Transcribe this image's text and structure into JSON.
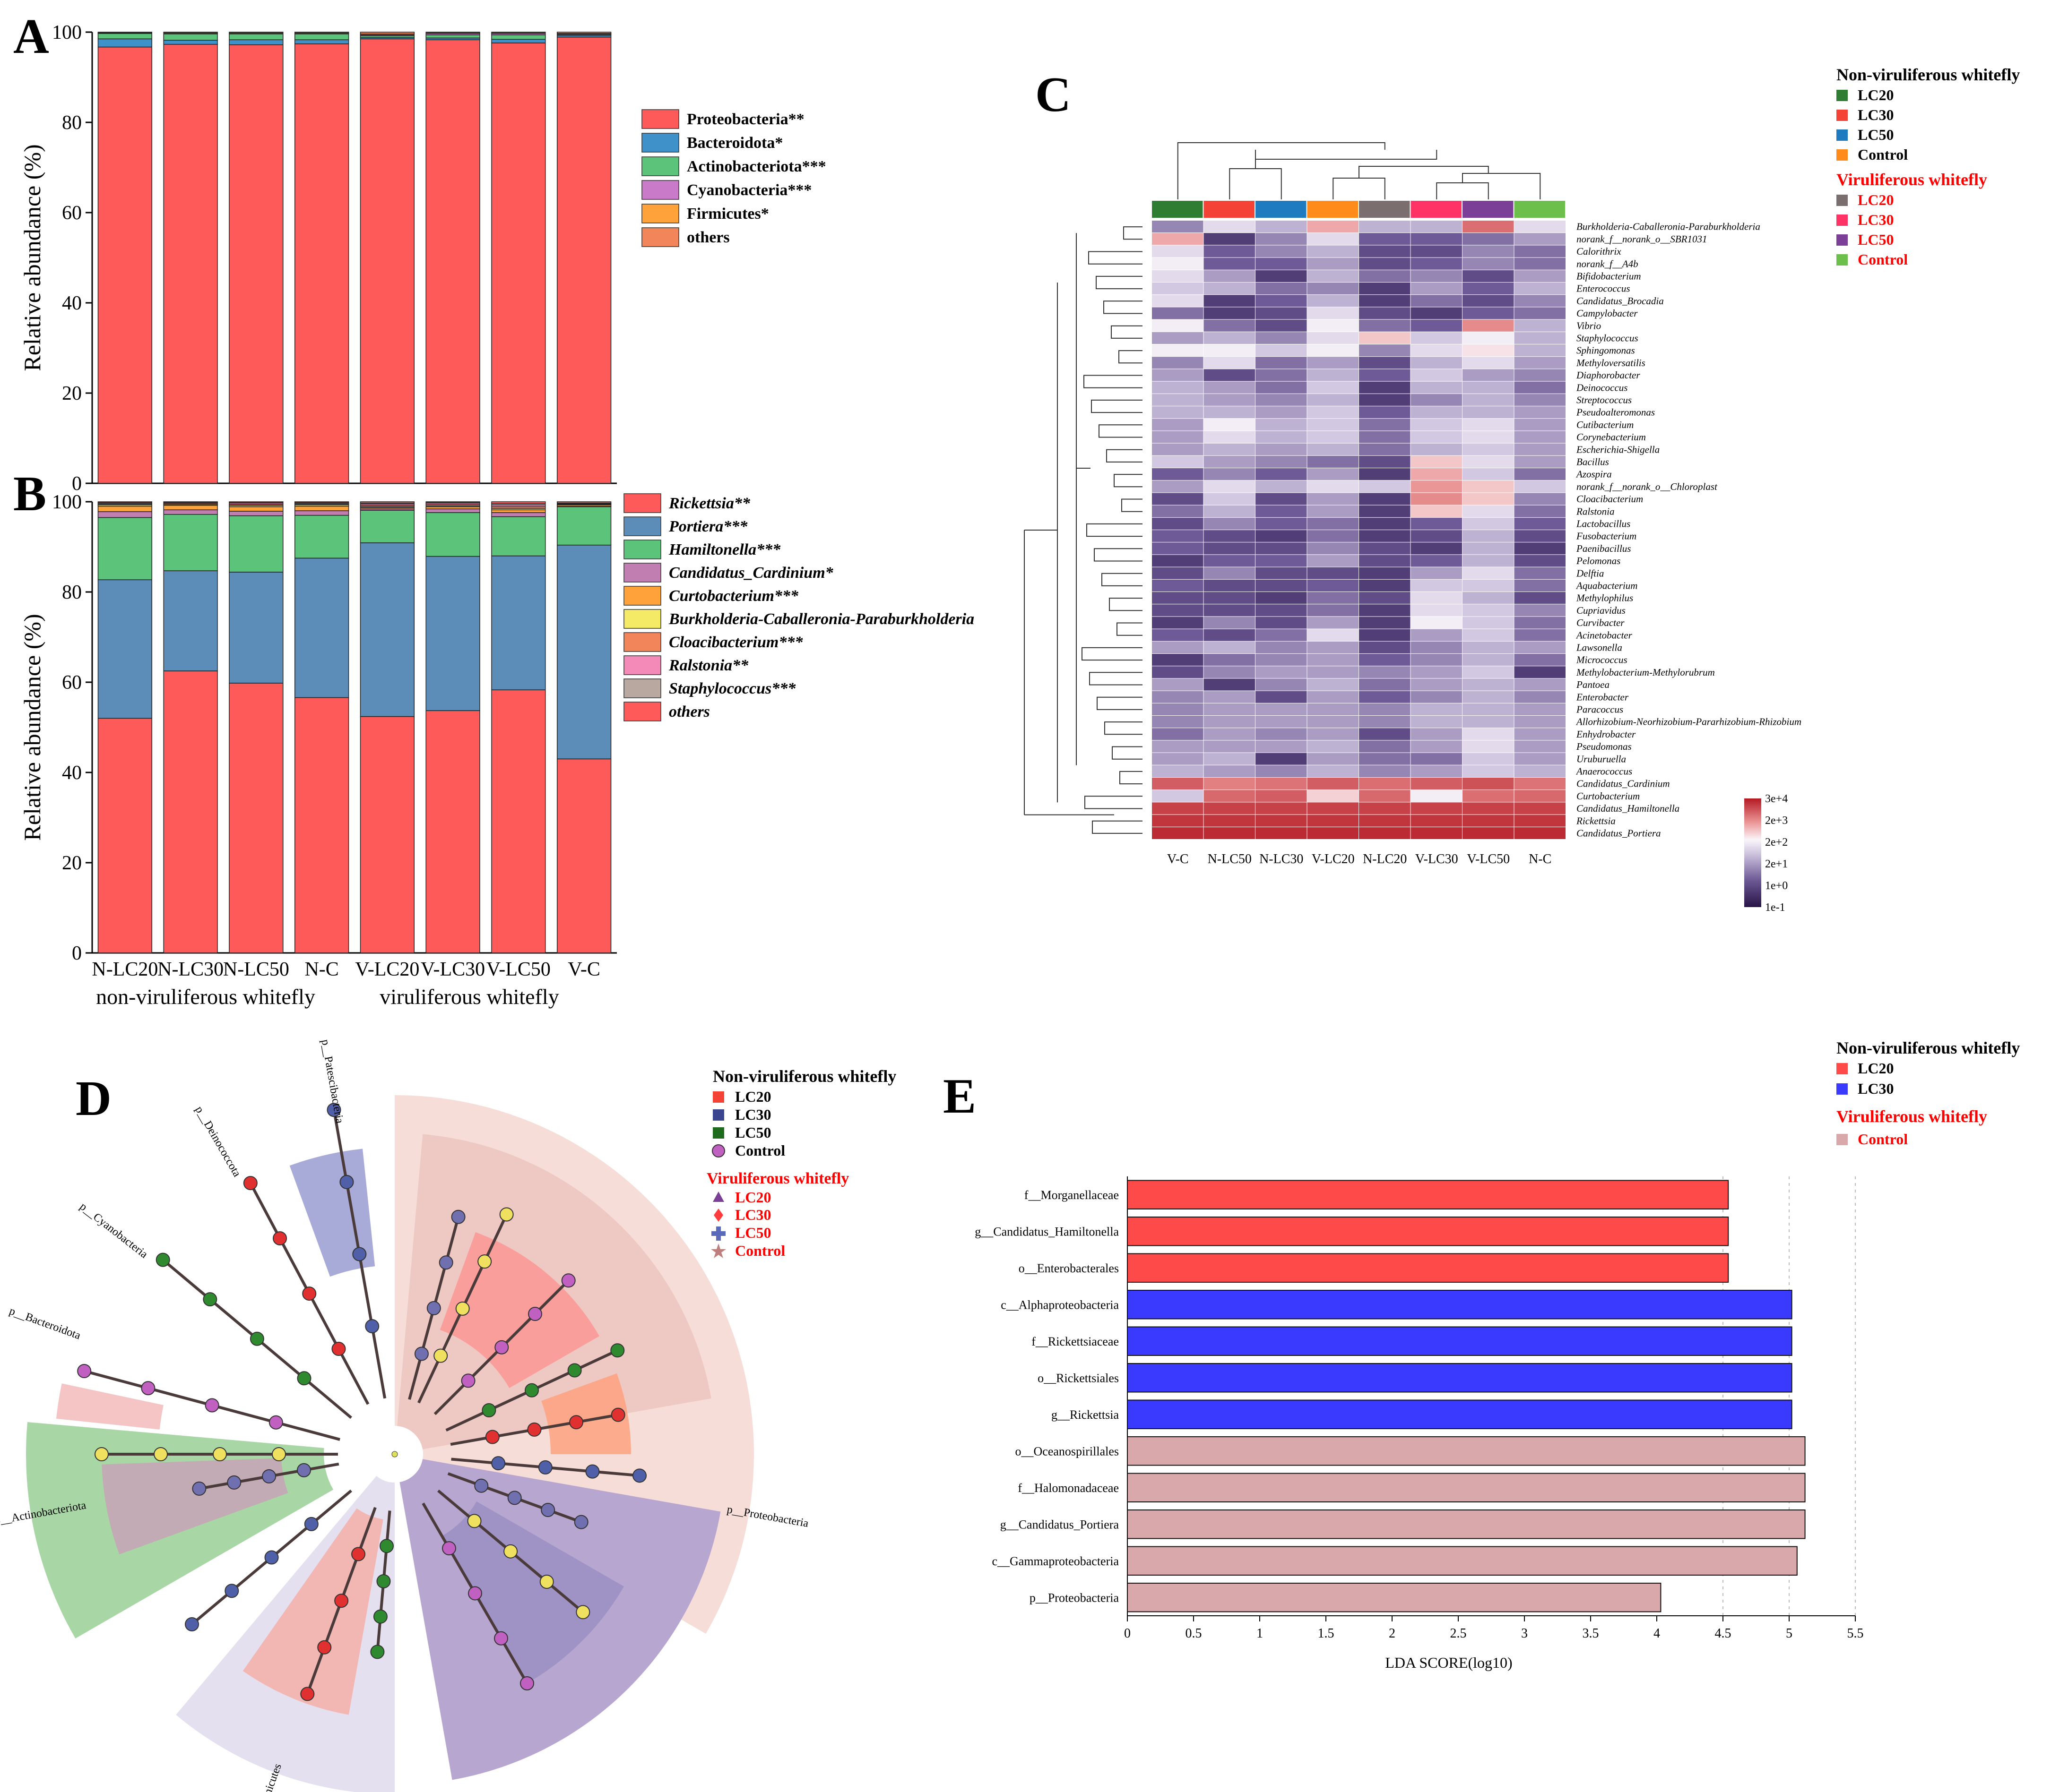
{
  "panel_letters": {
    "a": "A",
    "b": "B",
    "c": "C",
    "d": "D",
    "e": "E"
  },
  "colors": {
    "red": "#ff5a5a",
    "blue": "#5b8db8",
    "teal": "#3f92c9",
    "green": "#5cc47a",
    "purple": "#c97bc9",
    "orange": "#ffa23a",
    "salmon": "#f2865a",
    "yellow": "#f4ea66",
    "pink": "#f48ab8",
    "taupe": "#b9a8a0",
    "mauve": "#c07fb0",
    "lc20_nv": "#2e7d32",
    "lc30_nv": "#f44336",
    "lc50_nv": "#1e7bbf",
    "control_nv": "#ff8c1a",
    "lc20_v": "#7a6e6e",
    "lc30_v": "#ff3366",
    "lc50_v": "#7b3f98",
    "control_v": "#6cbf4a",
    "lda_red": "#ff4a4a",
    "lda_blue": "#3a3aff",
    "lda_pink": "#d8a8aa"
  },
  "chart_data": [
    {
      "id": "A",
      "type": "bar",
      "stacked": true,
      "title": "",
      "ylabel": "Relative abundance (%)",
      "xlabel": "",
      "ylim": [
        0,
        100
      ],
      "yticks": [
        0,
        20,
        40,
        60,
        80,
        100
      ],
      "categories": [
        "N-LC20",
        "N-LC30",
        "N-LC50",
        "N-C",
        "V-LC20",
        "V-LC30",
        "V-LC50",
        "V-C"
      ],
      "series": [
        {
          "name": "Proteobacteria**",
          "color": "#ff5a5a",
          "values": [
            96.7,
            97.3,
            97.2,
            97.4,
            98.5,
            98.3,
            97.6,
            98.9
          ]
        },
        {
          "name": "Bacteroidota*",
          "color": "#3f92c9",
          "values": [
            1.8,
            0.9,
            1.1,
            0.9,
            0.3,
            0.4,
            0.8,
            0.4
          ]
        },
        {
          "name": "Actinobacteriota***",
          "color": "#5cc47a",
          "values": [
            1.2,
            1.4,
            1.3,
            1.3,
            0.4,
            0.7,
            1.0,
            0.2
          ]
        },
        {
          "name": "Cyanobacteria***",
          "color": "#c97bc9",
          "values": [
            0.1,
            0.1,
            0.1,
            0.1,
            0.2,
            0.3,
            0.3,
            0.1
          ]
        },
        {
          "name": "Firmicutes*",
          "color": "#ffa23a",
          "values": [
            0.1,
            0.2,
            0.2,
            0.2,
            0.2,
            0.2,
            0.2,
            0.1
          ]
        },
        {
          "name": "others",
          "color": "#f2865a",
          "values": [
            0.1,
            0.1,
            0.1,
            0.1,
            0.4,
            0.1,
            0.1,
            0.3
          ]
        }
      ]
    },
    {
      "id": "B",
      "type": "bar",
      "stacked": true,
      "title": "",
      "ylabel": "Relative abundance (%)",
      "xlabel": "",
      "ylim": [
        0,
        100
      ],
      "yticks": [
        0,
        20,
        40,
        60,
        80,
        100
      ],
      "categories": [
        "N-LC20",
        "N-LC30",
        "N-LC50",
        "N-C",
        "V-LC20",
        "V-LC30",
        "V-LC50",
        "V-C"
      ],
      "group_labels": [
        "non-viruliferous whitefly",
        "viruliferous whitefly"
      ],
      "series": [
        {
          "name": "Rickettsia**",
          "color": "#ff5a5a",
          "values": [
            52.0,
            62.5,
            59.8,
            56.6,
            52.4,
            53.7,
            58.3,
            43.0
          ]
        },
        {
          "name": "Portiera***",
          "color": "#5b8db8",
          "values": [
            30.7,
            22.2,
            24.6,
            30.9,
            38.5,
            34.2,
            29.7,
            47.4
          ]
        },
        {
          "name": "Hamiltonella***",
          "color": "#5cc47a",
          "values": [
            13.8,
            12.5,
            12.5,
            9.5,
            7.2,
            9.7,
            8.7,
            8.5
          ]
        },
        {
          "name": "Candidatus_Cardinium*",
          "color": "#c07fb0",
          "values": [
            1.3,
            1.0,
            1.0,
            1.0,
            0.3,
            0.8,
            0.9,
            0.1
          ]
        },
        {
          "name": "Curtobacterium***",
          "color": "#ffa23a",
          "values": [
            1.2,
            1.0,
            1.0,
            1.0,
            0.3,
            0.5,
            0.6,
            0.3
          ]
        },
        {
          "name": "Burkholderia-Caballeronia-Paraburkholderia",
          "color": "#f4ea66",
          "values": [
            0.3,
            0.2,
            0.3,
            0.3,
            0.2,
            0.2,
            0.3,
            0.1
          ]
        },
        {
          "name": "Cloacibacterium***",
          "color": "#f2865a",
          "values": [
            0.2,
            0.2,
            0.2,
            0.2,
            0.3,
            0.3,
            0.4,
            0.1
          ]
        },
        {
          "name": "Ralstonia**",
          "color": "#f48ab8",
          "values": [
            0.2,
            0.2,
            0.3,
            0.2,
            0.3,
            0.3,
            0.4,
            0.1
          ]
        },
        {
          "name": "Staphylococcus***",
          "color": "#b9a8a0",
          "values": [
            0.1,
            0.1,
            0.1,
            0.1,
            0.2,
            0.2,
            0.3,
            0.1
          ]
        },
        {
          "name": "others",
          "color": "#ff5a5a",
          "values": [
            0.2,
            0.1,
            0.2,
            0.2,
            0.3,
            0.1,
            0.4,
            0.3
          ]
        }
      ]
    },
    {
      "id": "C",
      "type": "heatmap",
      "columns": [
        "V-C",
        "N-LC50",
        "N-LC30",
        "V-LC20",
        "N-LC20",
        "V-LC30",
        "V-LC50",
        "N-C"
      ],
      "rows": [
        "Burkholderia-Caballeronia-Paraburkholderia",
        "norank_f__norank_o__SBR1031",
        "Calorithrix",
        "norank_f__A4b",
        "Bifidobacterium",
        "Enterococcus",
        "Candidatus_Brocadia",
        "Campylobacter",
        "Vibrio",
        "Staphylococcus",
        "Sphingomonas",
        "Methyloversatilis",
        "Diaphorobacter",
        "Deinococcus",
        "Streptococcus",
        "Pseudoalteromonas",
        "Cutibacterium",
        "Corynebacterium",
        "Escherichia-Shigella",
        "Bacillus",
        "Azospira",
        "norank_f__norank_o__Chloroplast",
        "Cloacibacterium",
        "Ralstonia",
        "Lactobacillus",
        "Fusobacterium",
        "Paenibacillus",
        "Pelomonas",
        "Delftia",
        "Aquabacterium",
        "Methylophilus",
        "Cupriavidus",
        "Curvibacter",
        "Acinetobacter",
        "Lawsonella",
        "Micrococcus",
        "Methylobacterium-Methylorubrum",
        "Pantoea",
        "Enterobacter",
        "Paracoccus",
        "Allorhizobium-Neorhizobium-Pararhizobium-Rhizobium",
        "Enhydrobacter",
        "Pseudomonas",
        "Uruburuella",
        "Anaerococcus",
        "Candidatus_Cardinium",
        "Curtobacterium",
        "Candidatus_Hamiltonella",
        "Rickettsia",
        "Candidatus_Portiera"
      ],
      "group_colors": [
        "#2e7d32",
        "#f44336",
        "#1e7bbf",
        "#ff8c1a",
        "#7a6e6e",
        "#ff3366",
        "#7b3f98",
        "#6cbf4a"
      ],
      "colorbar_ticks": [
        "3e+4",
        "2e+3",
        "2e+2",
        "2e+1",
        "1e+0",
        "1e-1"
      ],
      "values": [
        [
          0.35,
          0.55,
          0.45,
          0.75,
          0.45,
          0.45,
          0.85,
          0.55
        ],
        [
          0.75,
          0.15,
          0.35,
          0.55,
          0.25,
          0.25,
          0.3,
          0.4
        ],
        [
          0.55,
          0.25,
          0.35,
          0.45,
          0.2,
          0.2,
          0.35,
          0.3
        ],
        [
          0.6,
          0.25,
          0.25,
          0.4,
          0.2,
          0.25,
          0.35,
          0.3
        ],
        [
          0.55,
          0.4,
          0.15,
          0.45,
          0.3,
          0.35,
          0.2,
          0.4
        ],
        [
          0.5,
          0.45,
          0.3,
          0.35,
          0.15,
          0.4,
          0.25,
          0.45
        ],
        [
          0.55,
          0.15,
          0.25,
          0.45,
          0.15,
          0.3,
          0.2,
          0.35
        ],
        [
          0.3,
          0.15,
          0.2,
          0.55,
          0.2,
          0.15,
          0.25,
          0.3
        ],
        [
          0.6,
          0.3,
          0.2,
          0.6,
          0.3,
          0.25,
          0.8,
          0.45
        ],
        [
          0.4,
          0.45,
          0.35,
          0.55,
          0.7,
          0.5,
          0.6,
          0.45
        ],
        [
          0.6,
          0.6,
          0.5,
          0.6,
          0.35,
          0.55,
          0.65,
          0.45
        ],
        [
          0.35,
          0.55,
          0.3,
          0.4,
          0.2,
          0.45,
          0.55,
          0.4
        ],
        [
          0.4,
          0.2,
          0.3,
          0.45,
          0.25,
          0.5,
          0.4,
          0.35
        ],
        [
          0.45,
          0.4,
          0.3,
          0.5,
          0.15,
          0.45,
          0.45,
          0.3
        ],
        [
          0.45,
          0.4,
          0.35,
          0.45,
          0.15,
          0.35,
          0.45,
          0.35
        ],
        [
          0.45,
          0.45,
          0.4,
          0.5,
          0.25,
          0.45,
          0.45,
          0.4
        ],
        [
          0.4,
          0.6,
          0.45,
          0.5,
          0.3,
          0.5,
          0.55,
          0.4
        ],
        [
          0.4,
          0.55,
          0.45,
          0.5,
          0.3,
          0.5,
          0.55,
          0.4
        ],
        [
          0.4,
          0.45,
          0.4,
          0.45,
          0.3,
          0.45,
          0.5,
          0.4
        ],
        [
          0.5,
          0.4,
          0.35,
          0.3,
          0.2,
          0.7,
          0.55,
          0.4
        ],
        [
          0.25,
          0.35,
          0.25,
          0.4,
          0.15,
          0.75,
          0.5,
          0.3
        ],
        [
          0.4,
          0.55,
          0.45,
          0.55,
          0.5,
          0.78,
          0.7,
          0.5
        ],
        [
          0.2,
          0.5,
          0.2,
          0.4,
          0.15,
          0.8,
          0.7,
          0.35
        ],
        [
          0.3,
          0.45,
          0.25,
          0.4,
          0.15,
          0.7,
          0.55,
          0.3
        ],
        [
          0.2,
          0.35,
          0.25,
          0.3,
          0.15,
          0.25,
          0.5,
          0.25
        ],
        [
          0.25,
          0.2,
          0.15,
          0.3,
          0.15,
          0.2,
          0.45,
          0.2
        ],
        [
          0.25,
          0.2,
          0.2,
          0.35,
          0.2,
          0.15,
          0.45,
          0.15
        ],
        [
          0.15,
          0.25,
          0.25,
          0.4,
          0.2,
          0.25,
          0.45,
          0.2
        ],
        [
          0.2,
          0.35,
          0.2,
          0.2,
          0.15,
          0.4,
          0.55,
          0.3
        ],
        [
          0.25,
          0.2,
          0.2,
          0.25,
          0.15,
          0.5,
          0.5,
          0.3
        ],
        [
          0.2,
          0.2,
          0.15,
          0.3,
          0.2,
          0.55,
          0.45,
          0.2
        ],
        [
          0.2,
          0.2,
          0.2,
          0.3,
          0.15,
          0.55,
          0.5,
          0.35
        ],
        [
          0.15,
          0.35,
          0.2,
          0.4,
          0.15,
          0.6,
          0.5,
          0.3
        ],
        [
          0.25,
          0.2,
          0.3,
          0.55,
          0.15,
          0.4,
          0.5,
          0.3
        ],
        [
          0.4,
          0.45,
          0.35,
          0.4,
          0.2,
          0.35,
          0.45,
          0.4
        ],
        [
          0.15,
          0.3,
          0.35,
          0.4,
          0.25,
          0.35,
          0.45,
          0.3
        ],
        [
          0.2,
          0.35,
          0.4,
          0.4,
          0.35,
          0.4,
          0.5,
          0.15
        ],
        [
          0.4,
          0.15,
          0.35,
          0.45,
          0.3,
          0.4,
          0.45,
          0.4
        ],
        [
          0.35,
          0.4,
          0.2,
          0.4,
          0.25,
          0.35,
          0.45,
          0.35
        ],
        [
          0.35,
          0.4,
          0.4,
          0.4,
          0.35,
          0.45,
          0.45,
          0.4
        ],
        [
          0.35,
          0.4,
          0.4,
          0.4,
          0.35,
          0.45,
          0.45,
          0.4
        ],
        [
          0.3,
          0.4,
          0.35,
          0.4,
          0.2,
          0.4,
          0.55,
          0.4
        ],
        [
          0.4,
          0.4,
          0.4,
          0.45,
          0.3,
          0.4,
          0.55,
          0.4
        ],
        [
          0.4,
          0.45,
          0.15,
          0.4,
          0.3,
          0.3,
          0.5,
          0.4
        ],
        [
          0.45,
          0.4,
          0.35,
          0.45,
          0.35,
          0.4,
          0.5,
          0.45
        ],
        [
          0.88,
          0.82,
          0.84,
          0.88,
          0.85,
          0.88,
          0.9,
          0.84
        ],
        [
          0.5,
          0.86,
          0.88,
          0.68,
          0.86,
          0.6,
          0.85,
          0.86
        ],
        [
          0.93,
          0.93,
          0.93,
          0.93,
          0.93,
          0.93,
          0.93,
          0.93
        ],
        [
          0.95,
          0.95,
          0.95,
          0.95,
          0.95,
          0.95,
          0.95,
          0.95
        ],
        [
          0.97,
          0.97,
          0.97,
          0.97,
          0.97,
          0.97,
          0.97,
          0.97
        ]
      ]
    },
    {
      "id": "E",
      "type": "bar",
      "orientation": "horizontal",
      "xlabel": "LDA SCORE(log10)",
      "xlim": [
        0,
        5.5
      ],
      "xticks": [
        "0",
        "0.5",
        "1",
        "1.5",
        "2",
        "2.5",
        "3",
        "3.5",
        "4",
        "4.5",
        "5",
        "5.5"
      ],
      "categories": [
        "f__Morganellaceae",
        "g__Candidatus_Hamiltonella",
        "o__Enterobacterales",
        "c__Alphaproteobacteria",
        "f__Rickettsiaceae",
        "o__Rickettsiales",
        "g__Rickettsia",
        "o__Oceanospirillales",
        "f__Halomonadaceae",
        "g__Candidatus_Portiera",
        "c__Gammaproteobacteria",
        "p__Proteobacteria"
      ],
      "values": [
        4.54,
        4.54,
        4.54,
        5.02,
        5.02,
        5.02,
        5.02,
        5.12,
        5.12,
        5.12,
        5.06,
        4.03
      ],
      "groups": [
        "LC20",
        "LC20",
        "LC20",
        "LC30",
        "LC30",
        "LC30",
        "LC30",
        "Control",
        "Control",
        "Control",
        "Control",
        "Control"
      ]
    }
  ],
  "legend_c": {
    "head_nv": "Non-viruliferous whitefly",
    "head_v": "Viruliferous whitefly",
    "lc20": "LC20",
    "lc30": "LC30",
    "lc50": "LC50",
    "control": "Control"
  },
  "legend_d": {
    "head_nv": "Non-viruliferous whitefly",
    "head_v": "Viruliferous whitefly",
    "lc20": "LC20",
    "lc30": "LC30",
    "lc50": "LC50",
    "control": "Control"
  },
  "legend_e": {
    "head_nv": "Non-viruliferous whitefly",
    "head_v": "Viruliferous whitefly",
    "lc20": "LC20",
    "lc30": "LC30",
    "control": "Control"
  },
  "cladogram": {
    "phyla": [
      "p__Patescibacteria",
      "p__Deinococcota",
      "p__Cyanobacteria",
      "p__Bacteroidota",
      "p__Actinobacteriota",
      "p__Firmicutes",
      "p__Proteobacteria"
    ]
  }
}
